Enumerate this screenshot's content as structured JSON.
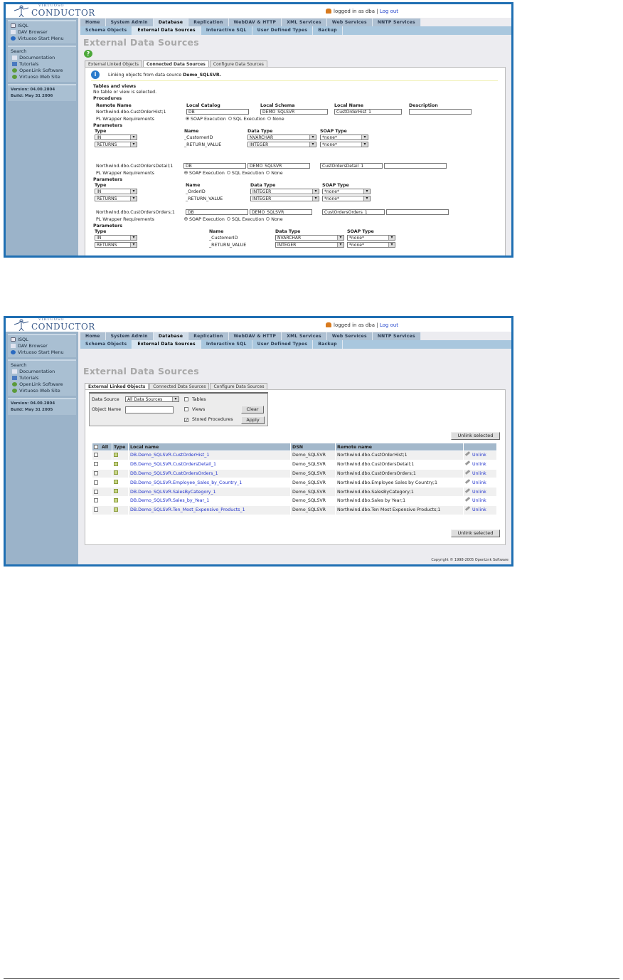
{
  "common": {
    "logo_small": "VIRTUOSO",
    "logo_big": "CONDUCTOR",
    "login_text": "logged in as dba |",
    "logout": "Log out",
    "nav_main": [
      "Home",
      "System Admin",
      "Database",
      "Replication",
      "WebDAV & HTTP",
      "XML Services",
      "Web Services",
      "NNTP Services"
    ],
    "nav_sub": [
      "Schema Objects",
      "External Data Sources",
      "Interactive SQL",
      "User Defined Types",
      "Backup"
    ],
    "sidebar_top": [
      "ISQL",
      "DAV Browser",
      "Virtuoso Start Menu"
    ],
    "sidebar_search": "Search",
    "sidebar_links": [
      "Documentation",
      "Tutorials",
      "OpenLink Software",
      "Virtuoso Web Site"
    ],
    "version": "Version: 04.00.2804",
    "page_title": "External Data Sources",
    "tabs": [
      "External Linked Objects",
      "Connected Data Sources",
      "Configure Data Sources"
    ]
  },
  "shot1": {
    "build": "Build: May 31 2006",
    "info_prefix": "Linking objects from data source ",
    "info_ds": "Demo_SQLSVR.",
    "tables_heading": "Tables and views",
    "no_table": "No table or view is selected.",
    "procedures_heading": "Procedures",
    "col_remote": "Remote Name",
    "col_catalog": "Local Catalog",
    "col_schema": "Local Schema",
    "col_localname": "Local Name",
    "col_desc": "Description",
    "wrapper_label": "PL Wrapper Requirements",
    "wrapper_opts": [
      "SOAP Execution",
      "SQL Execution",
      "None"
    ],
    "params_heading": "Parameters",
    "param_cols": [
      "Type",
      "Name",
      "Data Type",
      "SOAP Type"
    ],
    "procs": [
      {
        "remote": "Northwind.dbo.CustOrderHist;1",
        "catalog": "DB",
        "schema": "DEMO_SQLSVR",
        "local": "CustOrderHist_1",
        "desc": "",
        "params": [
          {
            "type": "IN",
            "name": "_CustomerID",
            "dtype": "NVARCHAR",
            "soap": "*none*"
          },
          {
            "type": "RETURNS",
            "name": "_RETURN_VALUE",
            "dtype": "INTEGER",
            "soap": "*none*"
          }
        ]
      },
      {
        "remote": "Northwind.dbo.CustOrdersDetail;1",
        "catalog": "DB",
        "schema": "DEMO_SQLSVR",
        "local": "CustOrdersDetail_1",
        "desc": "",
        "params": [
          {
            "type": "IN",
            "name": "_OrderID",
            "dtype": "INTEGER",
            "soap": "*none*"
          },
          {
            "type": "RETURNS",
            "name": "_RETURN_VALUE",
            "dtype": "INTEGER",
            "soap": "*none*"
          }
        ]
      },
      {
        "remote": "Northwind.dbo.CustOrdersOrders;1",
        "catalog": "DB",
        "schema": "DEMO_SQLSVR",
        "local": "CustOrdersOrders_1",
        "desc": "",
        "params": [
          {
            "type": "IN",
            "name": "_CustomerID",
            "dtype": "NVARCHAR",
            "soap": "*none*"
          },
          {
            "type": "RETURNS",
            "name": "_RETURN_VALUE",
            "dtype": "INTEGER",
            "soap": "*none*"
          }
        ]
      }
    ]
  },
  "shot2": {
    "build": "Build: May 31 2005",
    "filter": {
      "ds_label": "Data Source",
      "ds_value": "All Data Sources",
      "obj_label": "Object Name",
      "obj_value": "",
      "tables": "Tables",
      "views": "Views",
      "procs": "Stored Procedures",
      "tables_checked": false,
      "views_checked": false,
      "procs_checked": true,
      "clear": "Clear",
      "apply": "Apply"
    },
    "unlink_selected": "Unlink selected",
    "headers": [
      "All",
      "Type",
      "Local name",
      "DSN",
      "Remote name",
      ""
    ],
    "unlink": "Unlink",
    "rows": [
      {
        "local": "DB.Demo_SQLSVR.CustOrderHist_1",
        "dsn": "Demo_SQLSVR",
        "remote": "Northwind.dbo.CustOrderHist;1"
      },
      {
        "local": "DB.Demo_SQLSVR.CustOrdersDetail_1",
        "dsn": "Demo_SQLSVR",
        "remote": "Northwind.dbo.CustOrdersDetail;1"
      },
      {
        "local": "DB.Demo_SQLSVR.CustOrdersOrders_1",
        "dsn": "Demo_SQLSVR",
        "remote": "Northwind.dbo.CustOrdersOrders;1"
      },
      {
        "local": "DB.Demo_SQLSVR.Employee_Sales_by_Country_1",
        "dsn": "Demo_SQLSVR",
        "remote": "Northwind.dbo.Employee Sales by Country;1"
      },
      {
        "local": "DB.Demo_SQLSVR.SalesByCategory_1",
        "dsn": "Demo_SQLSVR",
        "remote": "Northwind.dbo.SalesByCategory;1"
      },
      {
        "local": "DB.Demo_SQLSVR.Sales_by_Year_1",
        "dsn": "Demo_SQLSVR",
        "remote": "Northwind.dbo.Sales by Year;1"
      },
      {
        "local": "DB.Demo_SQLSVR.Ten_Most_Expensive_Products_1",
        "dsn": "Demo_SQLSVR",
        "remote": "Northwind.dbo.Ten Most Expensive Products;1"
      }
    ],
    "copyright": "Copyright © 1998-2005 OpenLink Software"
  }
}
